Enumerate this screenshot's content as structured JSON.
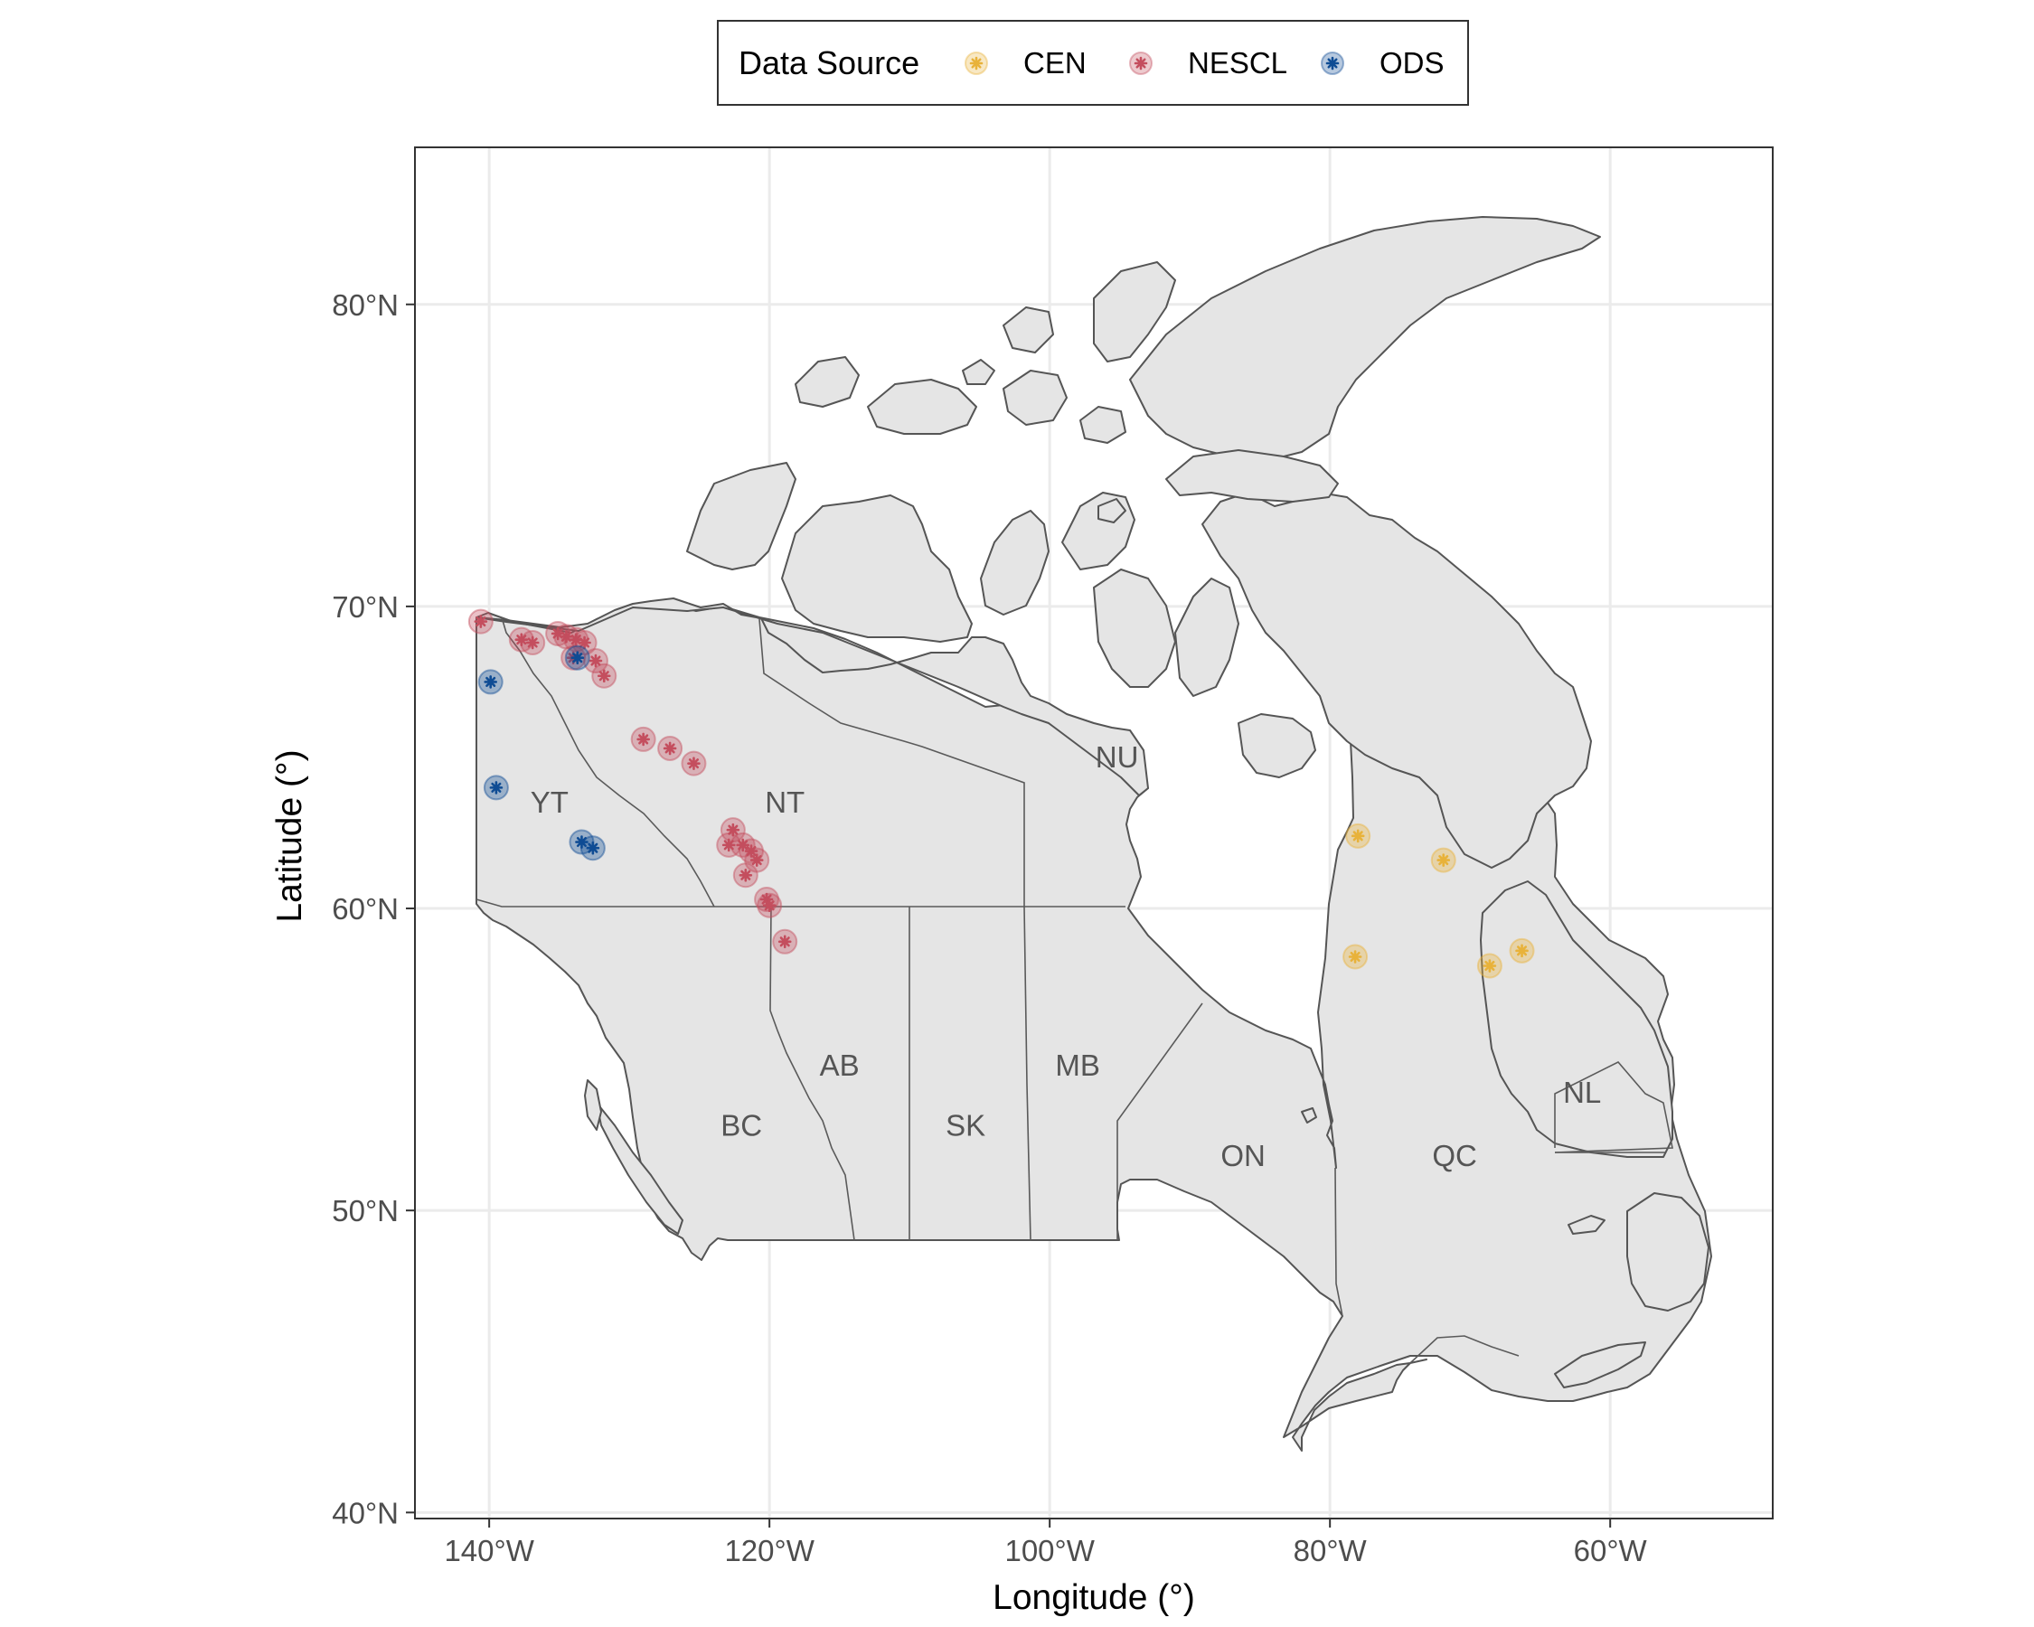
{
  "legend": {
    "title": "Data Source",
    "items": [
      {
        "label": "CEN",
        "color": "#E8B23A"
      },
      {
        "label": "NESCL",
        "color": "#C44E5E"
      },
      {
        "label": "ODS",
        "color": "#0F4C94"
      }
    ]
  },
  "axes": {
    "xlabel": "Longitude (°)",
    "ylabel": "Latitude (°)",
    "xticks": [
      {
        "value": -140,
        "label": "140°W"
      },
      {
        "value": -120,
        "label": "120°W"
      },
      {
        "value": -100,
        "label": "100°W"
      },
      {
        "value": -80,
        "label": "80°W"
      },
      {
        "value": -60,
        "label": "60°W"
      }
    ],
    "yticks": [
      {
        "value": 40,
        "label": "40°N"
      },
      {
        "value": 50,
        "label": "50°N"
      },
      {
        "value": 60,
        "label": "60°N"
      },
      {
        "value": 70,
        "label": "70°N"
      },
      {
        "value": 80,
        "label": "80°N"
      }
    ],
    "xlim": [
      -145.3,
      -48.4
    ],
    "ylim": [
      39.8,
      85.2
    ]
  },
  "regions": [
    {
      "label": "YT",
      "lon": -135.7,
      "lat": 63.5
    },
    {
      "label": "NT",
      "lon": -118.9,
      "lat": 63.5
    },
    {
      "label": "NU",
      "lon": -95.2,
      "lat": 65.0
    },
    {
      "label": "BC",
      "lon": -122.0,
      "lat": 52.8
    },
    {
      "label": "AB",
      "lon": -115.0,
      "lat": 54.8
    },
    {
      "label": "SK",
      "lon": -106.0,
      "lat": 52.8
    },
    {
      "label": "MB",
      "lon": -98.0,
      "lat": 54.8
    },
    {
      "label": "ON",
      "lon": -86.2,
      "lat": 51.8
    },
    {
      "label": "QC",
      "lon": -71.1,
      "lat": 51.8
    },
    {
      "label": "NL",
      "lon": -62.0,
      "lat": 53.9
    }
  ],
  "chart_data": {
    "type": "scatter",
    "xlabel": "Longitude (°)",
    "ylabel": "Latitude (°)",
    "series": [
      {
        "name": "CEN",
        "points": [
          [
            -78.0,
            62.4
          ],
          [
            -78.2,
            58.4
          ],
          [
            -71.9,
            61.6
          ],
          [
            -68.6,
            58.1
          ],
          [
            -66.3,
            58.6
          ]
        ]
      },
      {
        "name": "NESCL",
        "points": [
          [
            -140.6,
            69.5
          ],
          [
            -137.7,
            68.9
          ],
          [
            -136.9,
            68.8
          ],
          [
            -135.1,
            69.1
          ],
          [
            -134.5,
            69.0
          ],
          [
            -133.8,
            68.9
          ],
          [
            -133.2,
            68.8
          ],
          [
            -132.4,
            68.2
          ],
          [
            -131.8,
            67.7
          ],
          [
            -134.0,
            68.3
          ],
          [
            -129.0,
            65.6
          ],
          [
            -127.1,
            65.3
          ],
          [
            -125.4,
            64.8
          ],
          [
            -122.6,
            62.6
          ],
          [
            -122.9,
            62.1
          ],
          [
            -121.9,
            62.1
          ],
          [
            -121.3,
            61.9
          ],
          [
            -120.9,
            61.6
          ],
          [
            -121.7,
            61.1
          ],
          [
            -120.2,
            60.3
          ],
          [
            -120.0,
            60.1
          ],
          [
            -118.9,
            58.9
          ]
        ]
      },
      {
        "name": "ODS",
        "points": [
          [
            -139.9,
            67.5
          ],
          [
            -139.5,
            64.0
          ],
          [
            -133.7,
            68.3
          ],
          [
            -133.4,
            62.2
          ],
          [
            -132.6,
            62.0
          ]
        ]
      }
    ]
  }
}
